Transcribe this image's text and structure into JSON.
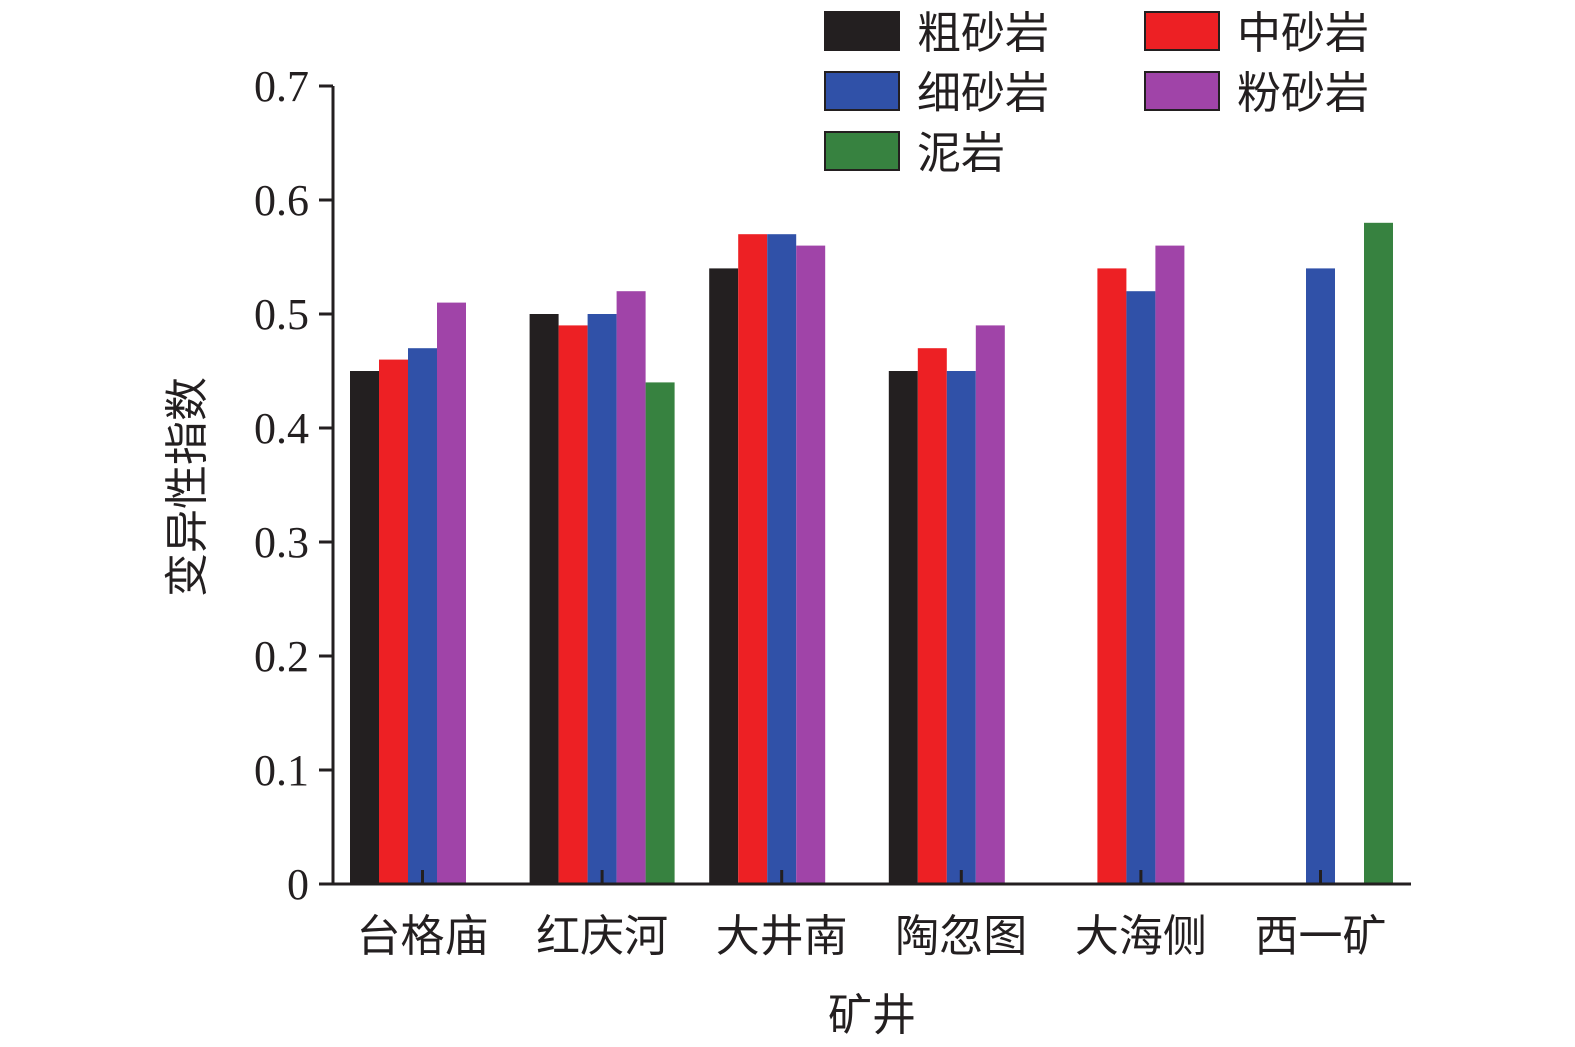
{
  "chart_data": {
    "type": "bar",
    "xlabel": "矿井",
    "ylabel": "变异性指数",
    "ylim": [
      0,
      0.7
    ],
    "yticks": [
      "0",
      "0.1",
      "0.2",
      "0.3",
      "0.4",
      "0.5",
      "0.6",
      "0.7"
    ],
    "ytick_values": [
      0,
      0.1,
      0.2,
      0.3,
      0.4,
      0.5,
      0.6,
      0.7
    ],
    "categories": [
      "台格庙",
      "红庆河",
      "大井南",
      "陶忽图",
      "大海侧",
      "西一矿"
    ],
    "legend_position": "top-right",
    "grid": false,
    "series": [
      {
        "name": "粗砂岩",
        "color": "#231f20",
        "values": [
          0.45,
          0.5,
          0.54,
          0.45,
          null,
          null
        ]
      },
      {
        "name": "中砂岩",
        "color": "#ed2024",
        "values": [
          0.46,
          0.49,
          0.57,
          0.47,
          0.54,
          null
        ]
      },
      {
        "name": "细砂岩",
        "color": "#3051a8",
        "values": [
          0.47,
          0.5,
          0.57,
          0.45,
          0.52,
          0.54
        ]
      },
      {
        "name": "粉砂岩",
        "color": "#a044a8",
        "values": [
          0.51,
          0.52,
          0.56,
          0.49,
          0.56,
          null
        ]
      },
      {
        "name": "泥岩",
        "color": "#378240",
        "values": [
          null,
          0.44,
          null,
          null,
          null,
          0.58
        ]
      }
    ]
  }
}
